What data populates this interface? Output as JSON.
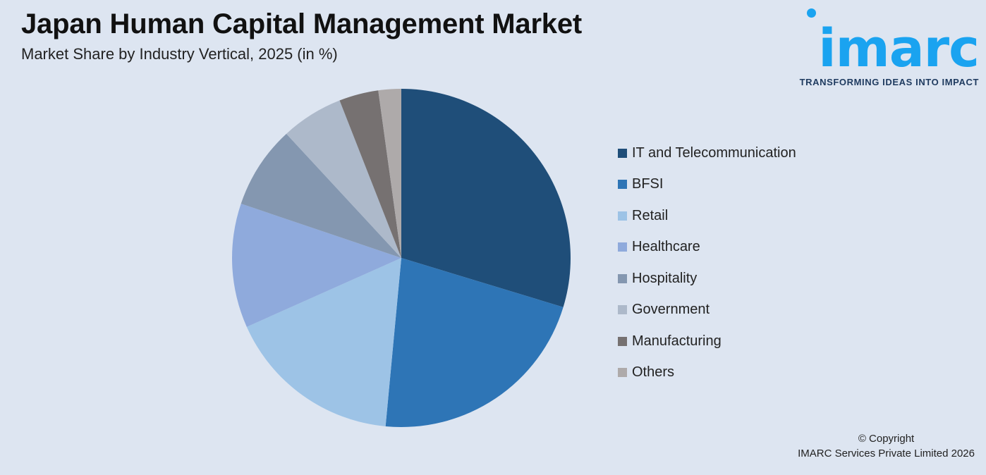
{
  "header": {
    "title": "Japan Human Capital Management Market",
    "subtitle": "Market Share by Industry Vertical, 2025 (in %)"
  },
  "logo": {
    "wordmark": "imarc",
    "tagline": "TRANSFORMING IDEAS INTO IMPACT",
    "color": "#1aa3f0"
  },
  "chart_data": {
    "type": "pie",
    "title": "Japan Human Capital Management Market",
    "subtitle": "Market Share by Industry Vertical, 2025 (in %)",
    "legend_position": "right",
    "categories": [
      "IT and Telecommunication",
      "BFSI",
      "Retail",
      "Healthcare",
      "Hospitality",
      "Government",
      "Manufacturing",
      "Others"
    ],
    "values": [
      30,
      22,
      17,
      12,
      8,
      6,
      3.8,
      2.2
    ],
    "colors": [
      "#1f4e79",
      "#2e75b6",
      "#9dc3e6",
      "#8faadc",
      "#8497b0",
      "#adb9ca",
      "#767171",
      "#aeaaaa"
    ]
  },
  "footer": {
    "copyright_line1": "© Copyright",
    "copyright_line2": "IMARC Services Private Limited 2026"
  }
}
